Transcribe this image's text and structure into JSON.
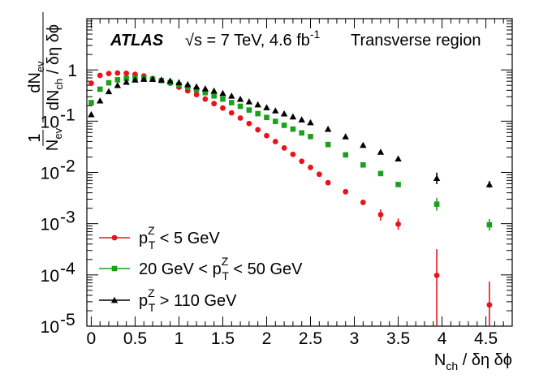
{
  "chart_data": {
    "type": "scatter",
    "y_scale": "log",
    "xlim": [
      -0.05,
      4.8
    ],
    "ylim": [
      1e-05,
      10
    ],
    "xlabel": {
      "main": "N",
      "sub": "ch",
      "rest": " / δη δϕ"
    },
    "ylabel": {
      "one": "1",
      "den_main": "N",
      "den_sub": "ev",
      "num_main": "dN",
      "num_sub": "ev",
      "den2_main": "dN",
      "den2_sub": "ch",
      "den2_rest": " / δη δϕ"
    },
    "x_ticks": [
      {
        "value": 0,
        "label": "0"
      },
      {
        "value": 0.5,
        "label": "0.5"
      },
      {
        "value": 1,
        "label": "1"
      },
      {
        "value": 1.5,
        "label": "1.5"
      },
      {
        "value": 2,
        "label": "2"
      },
      {
        "value": 2.5,
        "label": "2.5"
      },
      {
        "value": 3,
        "label": "3"
      },
      {
        "value": 3.5,
        "label": "3.5"
      },
      {
        "value": 4,
        "label": "4"
      },
      {
        "value": 4.5,
        "label": "4.5"
      }
    ],
    "y_ticks": [
      {
        "value": 1,
        "label": "1",
        "exp": ""
      },
      {
        "value": 0.1,
        "label": "10",
        "exp": "-1"
      },
      {
        "value": 0.01,
        "label": "10",
        "exp": "-2"
      },
      {
        "value": 0.001,
        "label": "10",
        "exp": "-3"
      },
      {
        "value": 0.0001,
        "label": "10",
        "exp": "-4"
      },
      {
        "value": 1e-05,
        "label": "10",
        "exp": "-5"
      }
    ],
    "annotations": {
      "experiment": "ATLAS",
      "energy": "√s = 7 TeV, 4.6 fb",
      "energy_sup": "-1",
      "region": "Transverse region"
    },
    "series": [
      {
        "name": "pTZ < 5 GeV",
        "legend": {
          "p": "p",
          "sub": "T",
          "sup": "Z",
          "prefix": "",
          "rest": " < 5 GeV"
        },
        "color": "#e8141c",
        "marker": "circle",
        "x": [
          0.0,
          0.1,
          0.2,
          0.3,
          0.4,
          0.5,
          0.6,
          0.7,
          0.8,
          0.9,
          1.0,
          1.1,
          1.2,
          1.3,
          1.4,
          1.5,
          1.6,
          1.7,
          1.8,
          1.9,
          2.0,
          2.1,
          2.2,
          2.3,
          2.4,
          2.5,
          2.6,
          2.7,
          2.9,
          3.1,
          3.3,
          3.5,
          3.94,
          4.54
        ],
        "y": [
          0.55,
          0.78,
          0.85,
          0.87,
          0.86,
          0.82,
          0.76,
          0.68,
          0.62,
          0.55,
          0.46,
          0.39,
          0.33,
          0.27,
          0.22,
          0.18,
          0.145,
          0.115,
          0.09,
          0.068,
          0.052,
          0.04,
          0.03,
          0.0225,
          0.0165,
          0.0125,
          0.0092,
          0.0063,
          0.0042,
          0.0026,
          0.0015,
          0.00098,
          9.8e-05,
          2.6e-05
        ],
        "yerr_low": [
          0,
          0,
          0,
          0,
          0,
          0,
          0,
          0,
          0,
          0,
          0,
          0,
          0,
          0,
          0,
          0,
          0,
          0,
          0,
          0,
          0,
          0,
          0,
          0,
          0,
          0,
          0,
          0,
          0,
          0,
          0.00035,
          0.00022,
          9.1e-05,
          1.7e-05
        ],
        "yerr_high": [
          0,
          0,
          0,
          0,
          0,
          0,
          0,
          0,
          0,
          0,
          0,
          0,
          0,
          0,
          0,
          0,
          0,
          0,
          0,
          0,
          0,
          0,
          0,
          0,
          0,
          0,
          0,
          0,
          0,
          0,
          0.0004,
          0.00028,
          0.00022,
          4.8e-05
        ]
      },
      {
        "name": "20 GeV < pTZ < 50 GeV",
        "legend": {
          "p": "p",
          "sub": "T",
          "sup": "Z",
          "prefix": "20 GeV < ",
          "rest": " < 50 GeV"
        },
        "color": "#1aa01a",
        "marker": "square",
        "x": [
          0.0,
          0.1,
          0.2,
          0.3,
          0.4,
          0.5,
          0.6,
          0.7,
          0.8,
          0.9,
          1.0,
          1.1,
          1.2,
          1.3,
          1.4,
          1.5,
          1.6,
          1.7,
          1.8,
          1.9,
          2.0,
          2.1,
          2.2,
          2.3,
          2.4,
          2.5,
          2.7,
          2.9,
          3.1,
          3.3,
          3.5,
          3.94,
          4.54
        ],
        "y": [
          0.23,
          0.42,
          0.56,
          0.64,
          0.68,
          0.7,
          0.69,
          0.66,
          0.62,
          0.57,
          0.51,
          0.46,
          0.41,
          0.36,
          0.31,
          0.27,
          0.23,
          0.195,
          0.165,
          0.14,
          0.118,
          0.099,
          0.083,
          0.07,
          0.059,
          0.05,
          0.035,
          0.022,
          0.014,
          0.0095,
          0.0058,
          0.0024,
          0.00095
        ],
        "yerr_low": [
          0,
          0,
          0,
          0,
          0,
          0,
          0,
          0,
          0,
          0,
          0,
          0,
          0,
          0,
          0,
          0,
          0,
          0,
          0,
          0,
          0,
          0,
          0,
          0,
          0,
          0,
          0,
          0,
          0,
          0,
          0,
          0.0006,
          0.00022
        ],
        "yerr_high": [
          0,
          0,
          0,
          0,
          0,
          0,
          0,
          0,
          0,
          0,
          0,
          0,
          0,
          0,
          0,
          0,
          0,
          0,
          0,
          0,
          0,
          0,
          0,
          0,
          0,
          0,
          0,
          0,
          0,
          0,
          0,
          0.0008,
          0.00028
        ]
      },
      {
        "name": "pTZ > 110 GeV",
        "legend": {
          "p": "p",
          "sub": "T",
          "sup": "Z",
          "prefix": "",
          "rest": " >  110 GeV"
        },
        "color": "#000000",
        "marker": "triangle",
        "x": [
          0.0,
          0.1,
          0.2,
          0.3,
          0.4,
          0.5,
          0.6,
          0.7,
          0.8,
          0.9,
          1.0,
          1.1,
          1.2,
          1.3,
          1.4,
          1.5,
          1.6,
          1.7,
          1.8,
          1.9,
          2.0,
          2.1,
          2.2,
          2.3,
          2.4,
          2.5,
          2.7,
          2.9,
          3.1,
          3.3,
          3.5,
          3.94,
          4.54
        ],
        "y": [
          0.135,
          0.25,
          0.38,
          0.5,
          0.58,
          0.64,
          0.66,
          0.66,
          0.64,
          0.61,
          0.57,
          0.52,
          0.47,
          0.43,
          0.39,
          0.35,
          0.31,
          0.27,
          0.24,
          0.21,
          0.185,
          0.16,
          0.14,
          0.122,
          0.107,
          0.094,
          0.07,
          0.05,
          0.034,
          0.025,
          0.0185,
          0.0077,
          0.0058
        ],
        "yerr_low": [
          0,
          0,
          0,
          0,
          0,
          0,
          0,
          0,
          0,
          0,
          0,
          0,
          0,
          0,
          0,
          0,
          0,
          0,
          0,
          0,
          0,
          0,
          0,
          0,
          0,
          0,
          0,
          0,
          0,
          0,
          0,
          0.0018,
          0.0008
        ],
        "yerr_high": [
          0,
          0,
          0,
          0,
          0,
          0,
          0,
          0,
          0,
          0,
          0,
          0,
          0,
          0,
          0,
          0,
          0,
          0,
          0,
          0,
          0,
          0,
          0,
          0,
          0,
          0,
          0,
          0,
          0,
          0,
          0,
          0.0022,
          0.001
        ]
      }
    ]
  }
}
